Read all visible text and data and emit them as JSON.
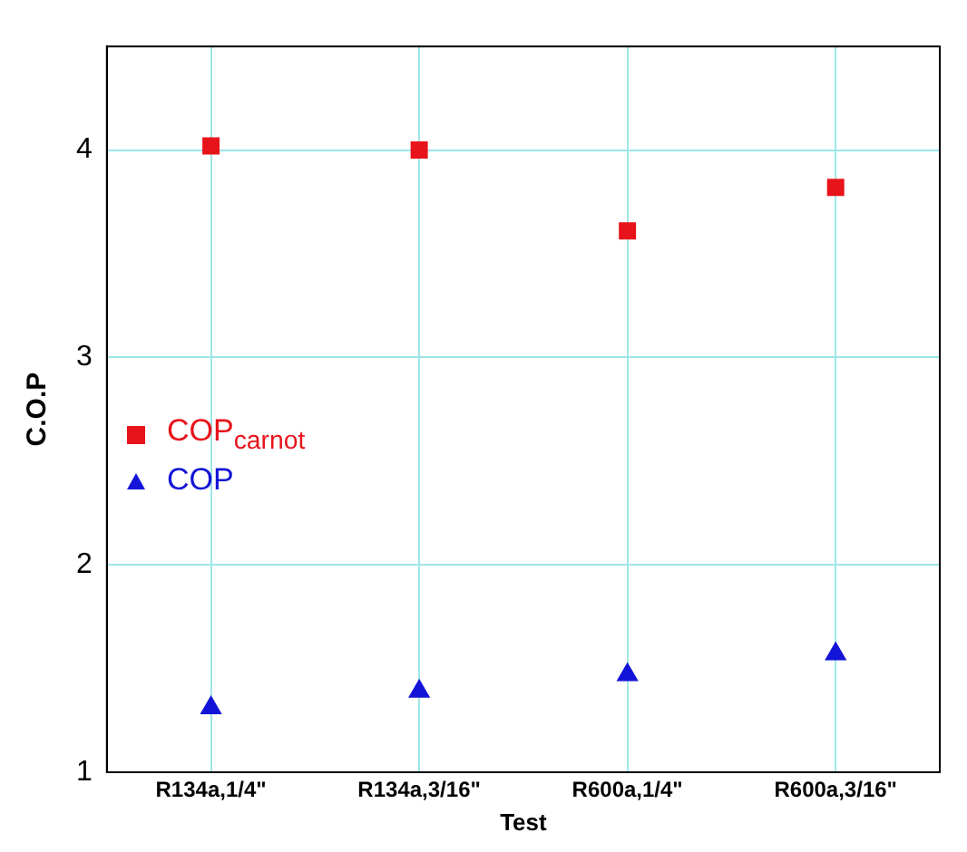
{
  "chart_data": {
    "type": "scatter",
    "xlabel": "Test",
    "ylabel": "C.O.P",
    "categories": [
      "R134a,1/4\"",
      "R134a,3/16\"",
      "R600a,1/4\"",
      "R600a,3/16\""
    ],
    "series": [
      {
        "name": "COP$_{carnot}$",
        "color": "#e8141b",
        "marker": "square",
        "values": [
          4.02,
          4.0,
          3.61,
          3.82
        ]
      },
      {
        "name": "COP",
        "color": "#1414d8",
        "marker": "triangle",
        "values": [
          1.31,
          1.39,
          1.47,
          1.57
        ]
      }
    ],
    "ylim": [
      1,
      4.5
    ],
    "yticks": [
      1,
      2,
      3,
      4
    ],
    "grid": true,
    "legend": "left"
  }
}
